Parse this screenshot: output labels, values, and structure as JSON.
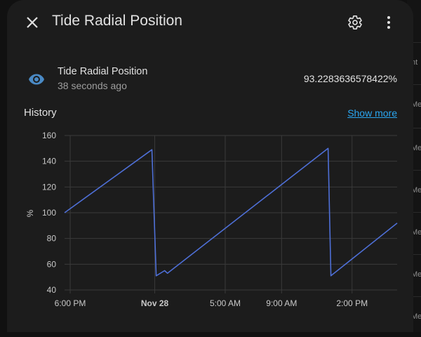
{
  "dialog": {
    "title": "Tide Radial Position",
    "close_icon": "close-icon",
    "settings_icon": "gear-icon",
    "menu_icon": "more-vert-icon"
  },
  "entity": {
    "icon": "eye-icon",
    "name": "Tide Radial Position",
    "last_changed": "38 seconds ago",
    "state": "93.2283636578422%"
  },
  "history": {
    "label": "History",
    "show_more": "Show more"
  },
  "background_rows": [
    "nt",
    "Me",
    "Me",
    "Me",
    "Me",
    "Me",
    "Me",
    "Me"
  ],
  "colors": {
    "line": "#4e6fd6",
    "accent": "#2aa6f0",
    "icon": "#4a8ac5"
  },
  "chart_data": {
    "type": "line",
    "ylabel": "%",
    "ylim": [
      40,
      160
    ],
    "yticks": [
      40,
      60,
      80,
      100,
      120,
      140,
      160
    ],
    "xticks": [
      {
        "label": "6:00 PM",
        "bold": false,
        "t": 0.4
      },
      {
        "label": "Nov 28",
        "bold": true,
        "t": 6.4
      },
      {
        "label": "5:00 AM",
        "bold": false,
        "t": 11.4
      },
      {
        "label": "9:00 AM",
        "bold": false,
        "t": 15.4
      },
      {
        "label": "2:00 PM",
        "bold": false,
        "t": 20.4
      }
    ],
    "x_range_hours": [
      0,
      23.6
    ],
    "series": [
      {
        "values": [
          {
            "t": 0,
            "y": 100
          },
          {
            "t": 6.2,
            "y": 149
          },
          {
            "t": 6.5,
            "y": 51
          },
          {
            "t": 7.1,
            "y": 55
          },
          {
            "t": 7.3,
            "y": 53
          },
          {
            "t": 18.7,
            "y": 150
          },
          {
            "t": 18.9,
            "y": 51
          },
          {
            "t": 23.6,
            "y": 92
          }
        ]
      }
    ]
  }
}
